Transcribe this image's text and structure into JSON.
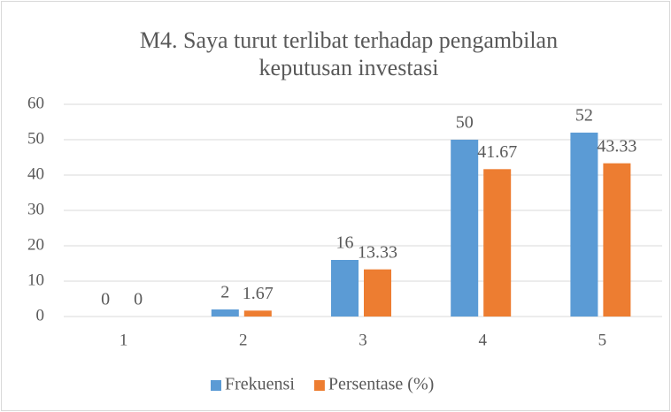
{
  "chart_data": {
    "type": "bar",
    "title": [
      "M4. Saya turut terlibat terhadap pengambilan",
      "keputusan investasi"
    ],
    "categories": [
      "1",
      "2",
      "3",
      "4",
      "5"
    ],
    "series": [
      {
        "name": "Frekuensi",
        "color": "#5b9bd5",
        "values": [
          0,
          2,
          16,
          50,
          52
        ]
      },
      {
        "name": "Persentase (%)",
        "color": "#ed7d31",
        "values": [
          0,
          1.67,
          13.33,
          41.67,
          43.33
        ]
      }
    ],
    "ylim": [
      0,
      60
    ],
    "yticks": [
      0,
      10,
      20,
      30,
      40,
      50,
      60
    ],
    "grid": true,
    "legend": "bottom"
  }
}
